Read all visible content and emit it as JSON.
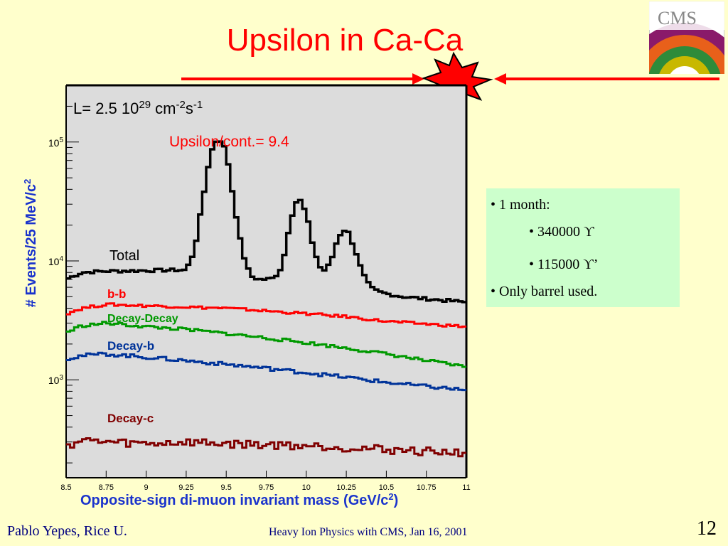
{
  "slide": {
    "title": "Upsilon in Ca-Ca",
    "logo_text": "CMS",
    "footer_author": "Pablo Yepes,  Rice U.",
    "footer_center": "Heavy Ion Physics with CMS,   Jan 16, 2001",
    "page_number": "12"
  },
  "info_box": {
    "items": [
      "• 1 month:",
      "• 340000 ϒ",
      "• 115000 ϒ’",
      "• Only barrel used."
    ]
  },
  "chart_data": {
    "type": "line",
    "title": "",
    "luminosity_text": {
      "prefix": "L= 2.5 10",
      "exp1": "29",
      "unit": " cm",
      "exp2": "-2",
      "s": "s",
      "exp3": "-1"
    },
    "annotation": "Upsilon/cont.= 9.4",
    "xlabel": {
      "text": "Opposite-sign di-muon invariant mass (GeV/c",
      "sup": "2",
      "end": ")"
    },
    "ylabel": {
      "text": "# Events/25 MeV/c",
      "sup": "2"
    },
    "xlim": [
      8.5,
      11
    ],
    "ylim": [
      150,
      300000
    ],
    "yscale": "log",
    "x_ticks": [
      "8.5",
      "8.75",
      "9",
      "9.25",
      "9.5",
      "9.75",
      "10",
      "10.25",
      "10.5",
      "10.75",
      "11"
    ],
    "y_ticks": [
      {
        "base": "10",
        "exp": "3",
        "value": 1000
      },
      {
        "base": "10",
        "exp": "4",
        "value": 10000
      },
      {
        "base": "10",
        "exp": "5",
        "value": 100000
      }
    ],
    "series": [
      {
        "name": "Total",
        "color": "#000000",
        "x": [
          8.5,
          8.6,
          8.75,
          9.0,
          9.25,
          9.3,
          9.35,
          9.4,
          9.45,
          9.5,
          9.55,
          9.6,
          9.65,
          9.7,
          9.75,
          9.8,
          9.85,
          9.9,
          9.95,
          10.0,
          10.05,
          10.1,
          10.15,
          10.2,
          10.25,
          10.3,
          10.35,
          10.4,
          10.45,
          10.5,
          10.6,
          10.75,
          11.0
        ],
        "y": [
          7000,
          8000,
          8200,
          8300,
          8400,
          12000,
          30000,
          80000,
          110000,
          85000,
          30000,
          12000,
          7500,
          7000,
          7000,
          7200,
          9000,
          22000,
          35000,
          25000,
          12000,
          8000,
          9500,
          16000,
          19000,
          13000,
          8000,
          6000,
          5500,
          5300,
          5000,
          4800,
          4500
        ]
      },
      {
        "name": "b-b",
        "color": "#ff0000",
        "x": [
          8.5,
          8.6,
          8.75,
          9.0,
          9.25,
          9.5,
          9.75,
          10.0,
          10.25,
          10.5,
          10.75,
          11.0
        ],
        "y": [
          3600,
          4000,
          4300,
          4200,
          4100,
          4000,
          3800,
          3600,
          3400,
          3100,
          2950,
          2800
        ]
      },
      {
        "name": "Decay-Decay",
        "color": "#009900",
        "x": [
          8.5,
          8.6,
          8.75,
          9.0,
          9.25,
          9.5,
          9.75,
          10.0,
          10.25,
          10.5,
          10.75,
          11.0
        ],
        "y": [
          2500,
          2850,
          3000,
          2800,
          2650,
          2450,
          2250,
          2050,
          1850,
          1650,
          1450,
          1280
        ]
      },
      {
        "name": "Decay-b",
        "color": "#003399",
        "x": [
          8.5,
          8.6,
          8.75,
          9.0,
          9.25,
          9.5,
          9.75,
          10.0,
          10.25,
          10.5,
          10.75,
          11.0
        ],
        "y": [
          1500,
          1600,
          1650,
          1550,
          1450,
          1350,
          1250,
          1150,
          1050,
          950,
          880,
          820
        ]
      },
      {
        "name": "Decay-c",
        "color": "#800000",
        "x": [
          8.5,
          8.6,
          8.75,
          9.0,
          9.25,
          9.5,
          9.75,
          10.0,
          10.25,
          10.5,
          10.75,
          11.0
        ],
        "y": [
          280,
          310,
          300,
          290,
          300,
          290,
          285,
          280,
          270,
          260,
          250,
          245
        ]
      }
    ]
  }
}
